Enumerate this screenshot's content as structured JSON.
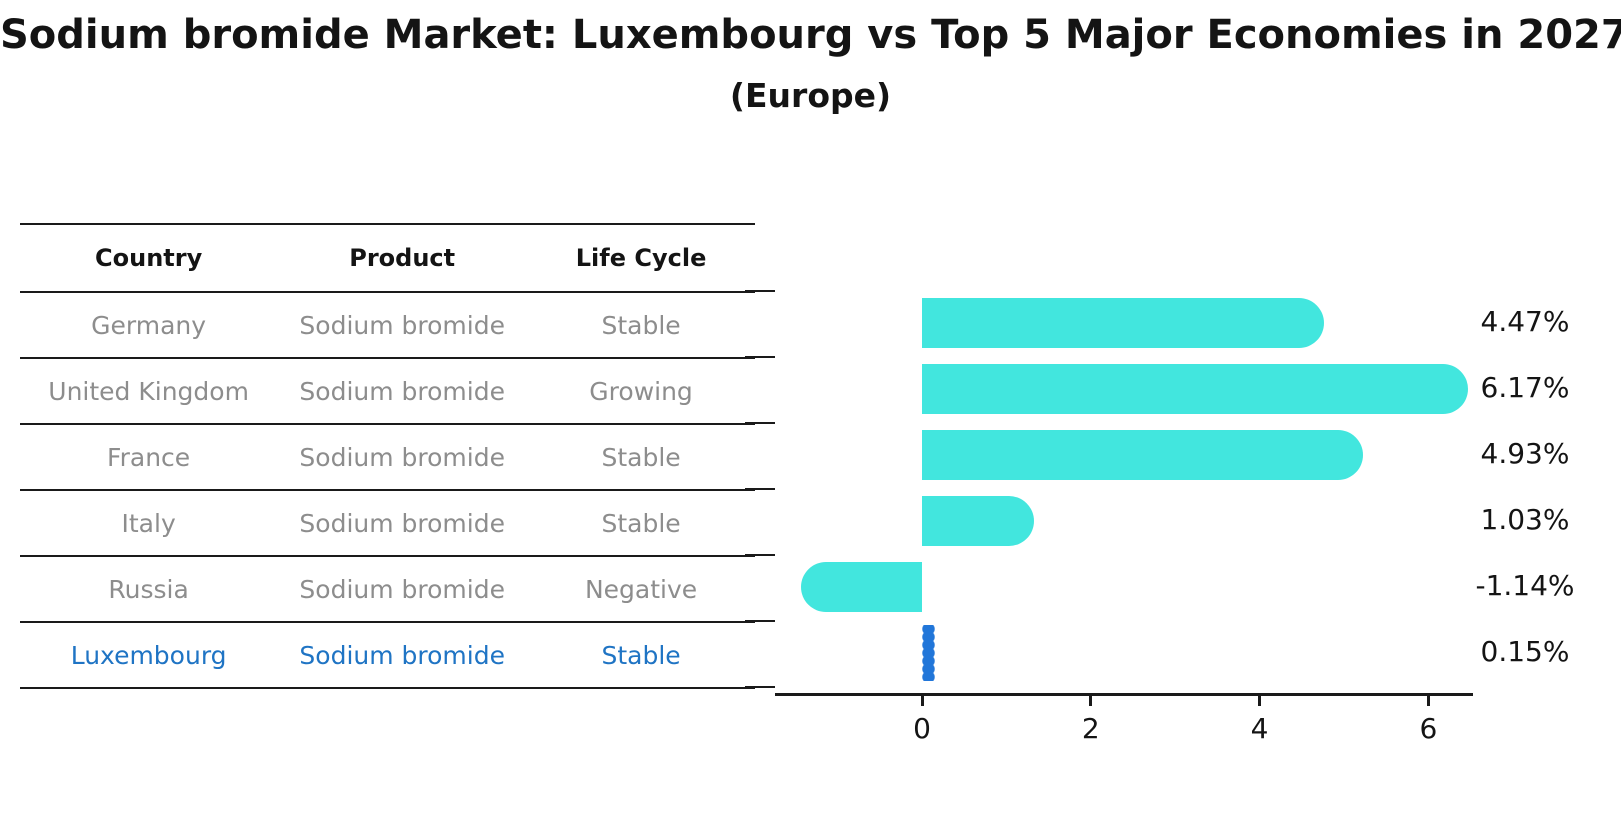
{
  "title": "Sodium bromide Market: Luxembourg vs Top 5 Major Economies in 2027",
  "subtitle": "(Europe)",
  "table": {
    "headers": [
      "Country",
      "Product",
      "Life Cycle"
    ],
    "rows": [
      {
        "country": "Germany",
        "product": "Sodium bromide",
        "life_cycle": "Stable"
      },
      {
        "country": "United Kingdom",
        "product": "Sodium bromide",
        "life_cycle": "Growing"
      },
      {
        "country": "France",
        "product": "Sodium bromide",
        "life_cycle": "Stable"
      },
      {
        "country": "Italy",
        "product": "Sodium bromide",
        "life_cycle": "Stable"
      },
      {
        "country": "Russia",
        "product": "Sodium bromide",
        "life_cycle": "Negative"
      },
      {
        "country": "Luxembourg",
        "product": "Sodium bromide",
        "life_cycle": "Stable"
      }
    ]
  },
  "chart_data": {
    "type": "bar",
    "orientation": "horizontal",
    "title": "Sodium bromide Market: Luxembourg vs Top 5 Major Economies in 2027",
    "subtitle": "(Europe)",
    "categories": [
      "Germany",
      "United Kingdom",
      "France",
      "Italy",
      "Russia",
      "Luxembourg"
    ],
    "values": [
      4.47,
      6.17,
      4.93,
      1.03,
      -1.14,
      0.15
    ],
    "value_labels": [
      "4.47%",
      "6.17%",
      "4.93%",
      "1.03%",
      "-1.14%",
      "0.15%"
    ],
    "x_ticks": [
      0,
      2,
      4,
      6
    ],
    "xlim": [
      -1.75,
      6.55
    ],
    "xlabel": "",
    "ylabel": "",
    "grid": false,
    "legend": "none",
    "highlight_index": 5
  },
  "colors": {
    "bar": "#42e6de",
    "highlight": "#2176d9",
    "highlight_text": "#1f74c4",
    "row_text": "#8d8d8d",
    "heading_text": "#141414"
  }
}
